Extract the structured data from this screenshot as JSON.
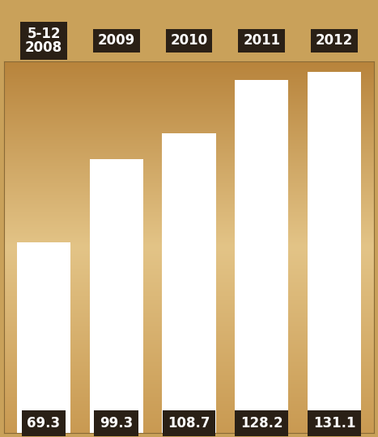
{
  "chart_data": {
    "type": "bar",
    "categories": [
      "5-12\n2008",
      "2009",
      "2010",
      "2011",
      "2012"
    ],
    "values": [
      69.3,
      99.3,
      108.7,
      128.2,
      131.1
    ],
    "color": "#ffffff",
    "ylim": [
      0,
      135
    ],
    "data_labels": true,
    "tick_labels": false
  }
}
